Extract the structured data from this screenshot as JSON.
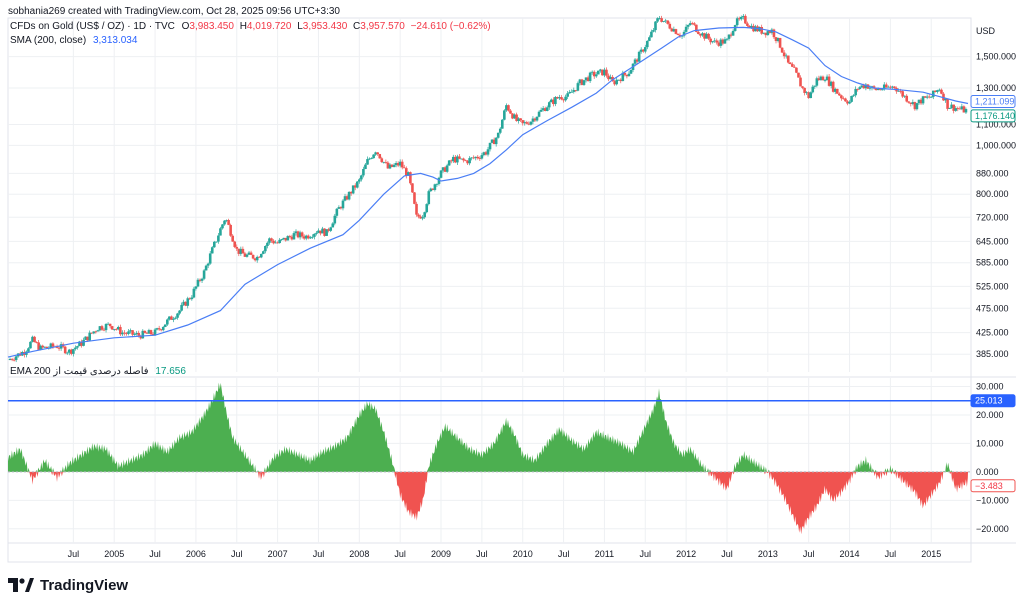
{
  "header": {
    "author_line": "sobhania269 created with TradingView.com, Oct 28, 2025 09:56 UTC+3:30"
  },
  "legend_main": {
    "symbol": "CFDs on Gold (US$ / OZ) · 1D · TVC",
    "open_label": "O",
    "open": "3,983.450",
    "high_label": "H",
    "high": "4,019.720",
    "low_label": "L",
    "low": "3,953.430",
    "close_label": "C",
    "close": "3,957.570",
    "change": "−24.610 (−0.62%)"
  },
  "legend_sma": {
    "name": "SMA (200, close)",
    "value": "3,313.034"
  },
  "legend_osc": {
    "name": "فاصله درصدی قیمت از EMA 200",
    "value": "17.656"
  },
  "brand": {
    "name": "TradingView"
  },
  "colors": {
    "up": "#26a69a",
    "down": "#ef5350",
    "sma": "#4a7ef5",
    "osc_pos": "#4caf50",
    "osc_neg": "#f05350",
    "level_line": "#2962ff",
    "grid": "#eef0f3",
    "axis_text": "#131722"
  },
  "chart_data": [
    {
      "type": "candlestick",
      "title": "",
      "scale": "log",
      "y_axis_unit": "USD",
      "y_tick_labels": [
        "1,500.000",
        "1,300.000",
        "1,100.000",
        "1,000.000",
        "880.000",
        "800.000",
        "720.000",
        "645.000",
        "585.000",
        "525.000",
        "475.000",
        "425.000",
        "385.000"
      ],
      "y_ticks": [
        1500,
        1300,
        1100,
        1000,
        880,
        800,
        720,
        645,
        585,
        525,
        475,
        425,
        385
      ],
      "ylim": [
        355,
        1790
      ],
      "x_tick_labels": [
        "Jul",
        "2005",
        "Jul",
        "2006",
        "Jul",
        "2007",
        "Jul",
        "2008",
        "Jul",
        "2009",
        "Jul",
        "2010",
        "Jul",
        "2011",
        "Jul",
        "2012",
        "Jul",
        "2013",
        "Jul",
        "2014",
        "Jul",
        "2015"
      ],
      "x_ticks": [
        2004.5,
        2005,
        2005.5,
        2006,
        2006.5,
        2007,
        2007.5,
        2008,
        2008.5,
        2009,
        2009.5,
        2010,
        2010.5,
        2011,
        2011.5,
        2012,
        2012.5,
        2013,
        2013.5,
        2014,
        2014.5,
        2015
      ],
      "xlim": [
        2003.7,
        2015.45
      ],
      "price_path": {
        "x": [
          2003.7,
          2003.9,
          2004.0,
          2004.1,
          2004.3,
          2004.45,
          2004.6,
          2004.8,
          2004.95,
          2005.1,
          2005.3,
          2005.5,
          2005.6,
          2005.8,
          2005.95,
          2006.1,
          2006.25,
          2006.36,
          2006.5,
          2006.6,
          2006.75,
          2006.9,
          2007.0,
          2007.2,
          2007.35,
          2007.5,
          2007.6,
          2007.75,
          2007.9,
          2008.0,
          2008.1,
          2008.2,
          2008.35,
          2008.5,
          2008.6,
          2008.7,
          2008.78,
          2008.85,
          2009.0,
          2009.15,
          2009.3,
          2009.45,
          2009.55,
          2009.7,
          2009.8,
          2009.92,
          2010.0,
          2010.1,
          2010.3,
          2010.45,
          2010.55,
          2010.7,
          2010.85,
          2011.0,
          2011.1,
          2011.3,
          2011.45,
          2011.55,
          2011.67,
          2011.75,
          2011.85,
          2011.95,
          2012.05,
          2012.2,
          2012.35,
          2012.5,
          2012.6,
          2012.7,
          2012.8,
          2012.95,
          2013.05,
          2013.15,
          2013.25,
          2013.33,
          2013.42,
          2013.5,
          2013.6,
          2013.7,
          2013.8,
          2013.9,
          2014.0,
          2014.1,
          2014.2,
          2014.3,
          2014.45,
          2014.55,
          2014.65,
          2014.8,
          2014.88,
          2015.0,
          2015.1,
          2015.2,
          2015.35,
          2015.45
        ],
        "y": [
          375,
          390,
          410,
          395,
          400,
          390,
          405,
          435,
          440,
          425,
          420,
          425,
          440,
          470,
          505,
          560,
          650,
          720,
          620,
          605,
          600,
          650,
          640,
          665,
          660,
          680,
          670,
          750,
          810,
          850,
          930,
          980,
          900,
          920,
          870,
          720,
          730,
          800,
          880,
          940,
          930,
          950,
          970,
          1050,
          1200,
          1120,
          1100,
          1120,
          1200,
          1250,
          1250,
          1330,
          1380,
          1400,
          1330,
          1400,
          1530,
          1630,
          1800,
          1750,
          1700,
          1650,
          1750,
          1660,
          1600,
          1610,
          1750,
          1780,
          1720,
          1680,
          1690,
          1580,
          1450,
          1400,
          1300,
          1250,
          1350,
          1370,
          1300,
          1250,
          1220,
          1300,
          1320,
          1290,
          1300,
          1310,
          1260,
          1200,
          1230,
          1250,
          1300,
          1200,
          1180,
          1170
        ]
      },
      "sma_path": {
        "x": [
          2003.7,
          2004.0,
          2004.5,
          2005.0,
          2005.5,
          2005.9,
          2006.3,
          2006.6,
          2007.0,
          2007.4,
          2007.8,
          2008.0,
          2008.3,
          2008.55,
          2008.75,
          2008.9,
          2009.0,
          2009.2,
          2009.4,
          2009.6,
          2009.8,
          2010.0,
          2010.3,
          2010.6,
          2010.9,
          2011.1,
          2011.4,
          2011.7,
          2011.9,
          2012.1,
          2012.4,
          2012.7,
          2012.9,
          2013.1,
          2013.3,
          2013.5,
          2013.7,
          2013.9,
          2014.1,
          2014.3,
          2014.6,
          2014.9,
          2015.1,
          2015.3,
          2015.45
        ],
        "y": [
          380,
          390,
          405,
          415,
          420,
          440,
          470,
          530,
          580,
          625,
          665,
          710,
          800,
          870,
          880,
          865,
          850,
          860,
          880,
          920,
          980,
          1050,
          1120,
          1190,
          1270,
          1350,
          1450,
          1560,
          1640,
          1690,
          1710,
          1715,
          1705,
          1680,
          1620,
          1560,
          1440,
          1370,
          1330,
          1300,
          1290,
          1275,
          1250,
          1225,
          1211.1
        ]
      },
      "last_price": {
        "label": "1,176.140",
        "value": 1176.14,
        "color": "#089981"
      },
      "sma_last": {
        "label": "1,211.099",
        "value": 1211.099,
        "color": "#4a7ef5"
      }
    },
    {
      "type": "area",
      "title": "",
      "series_name": "فاصله درصدی قیمت از EMA 200",
      "y_tick_labels": [
        "30.000",
        "20.000",
        "10.000",
        "0.000",
        "−10.000",
        "−20.000"
      ],
      "y_ticks": [
        30,
        20,
        10,
        0,
        -10,
        -20
      ],
      "ylim": [
        -25,
        33
      ],
      "xlim": [
        2003.7,
        2015.45
      ],
      "level_line": {
        "label": "25.013",
        "value": 25.013
      },
      "last_value": {
        "label": "−3.483",
        "value": -3.483
      },
      "x": [
        2003.7,
        2003.85,
        2004.0,
        2004.15,
        2004.3,
        2004.45,
        2004.6,
        2004.75,
        2004.9,
        2005.05,
        2005.2,
        2005.35,
        2005.5,
        2005.65,
        2005.8,
        2005.95,
        2006.1,
        2006.2,
        2006.3,
        2006.38,
        2006.45,
        2006.55,
        2006.65,
        2006.8,
        2006.95,
        2007.1,
        2007.25,
        2007.4,
        2007.55,
        2007.7,
        2007.85,
        2008.0,
        2008.1,
        2008.2,
        2008.3,
        2008.4,
        2008.5,
        2008.6,
        2008.7,
        2008.78,
        2008.85,
        2008.95,
        2009.05,
        2009.2,
        2009.35,
        2009.5,
        2009.65,
        2009.8,
        2009.9,
        2010.0,
        2010.15,
        2010.3,
        2010.45,
        2010.6,
        2010.75,
        2010.9,
        2011.05,
        2011.2,
        2011.35,
        2011.5,
        2011.6,
        2011.67,
        2011.75,
        2011.85,
        2011.95,
        2012.05,
        2012.2,
        2012.35,
        2012.5,
        2012.6,
        2012.7,
        2012.85,
        2013.0,
        2013.1,
        2013.2,
        2013.3,
        2013.4,
        2013.5,
        2013.6,
        2013.7,
        2013.8,
        2013.9,
        2014.0,
        2014.1,
        2014.2,
        2014.35,
        2014.5,
        2014.65,
        2014.8,
        2014.9,
        2015.0,
        2015.1,
        2015.2,
        2015.3,
        2015.45
      ],
      "values": [
        5,
        8,
        -3,
        4,
        -2,
        3,
        6,
        9,
        8,
        2,
        4,
        6,
        10,
        7,
        12,
        14,
        20,
        25,
        31,
        20,
        12,
        8,
        4,
        -2,
        5,
        8,
        6,
        4,
        7,
        9,
        12,
        20,
        24,
        22,
        14,
        4,
        -8,
        -14,
        -16,
        -10,
        2,
        10,
        16,
        12,
        8,
        6,
        10,
        18,
        13,
        6,
        4,
        10,
        15,
        11,
        8,
        14,
        12,
        10,
        7,
        16,
        22,
        28,
        18,
        10,
        6,
        8,
        2,
        -2,
        -6,
        2,
        6,
        3,
        0,
        -4,
        -9,
        -15,
        -21,
        -16,
        -12,
        -6,
        -10,
        -7,
        -3,
        2,
        4,
        -2,
        1,
        -3,
        -7,
        -12,
        -8,
        -4,
        3,
        -6,
        -3.483
      ]
    }
  ]
}
